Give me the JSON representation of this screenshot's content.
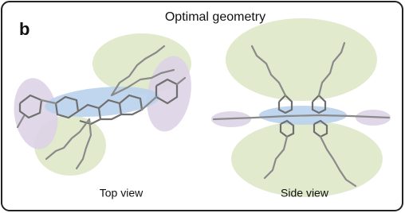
{
  "panel_label": "b",
  "title": "Optimal geometry",
  "views": [
    {
      "label": "Top view"
    },
    {
      "label": "Side view"
    }
  ]
}
